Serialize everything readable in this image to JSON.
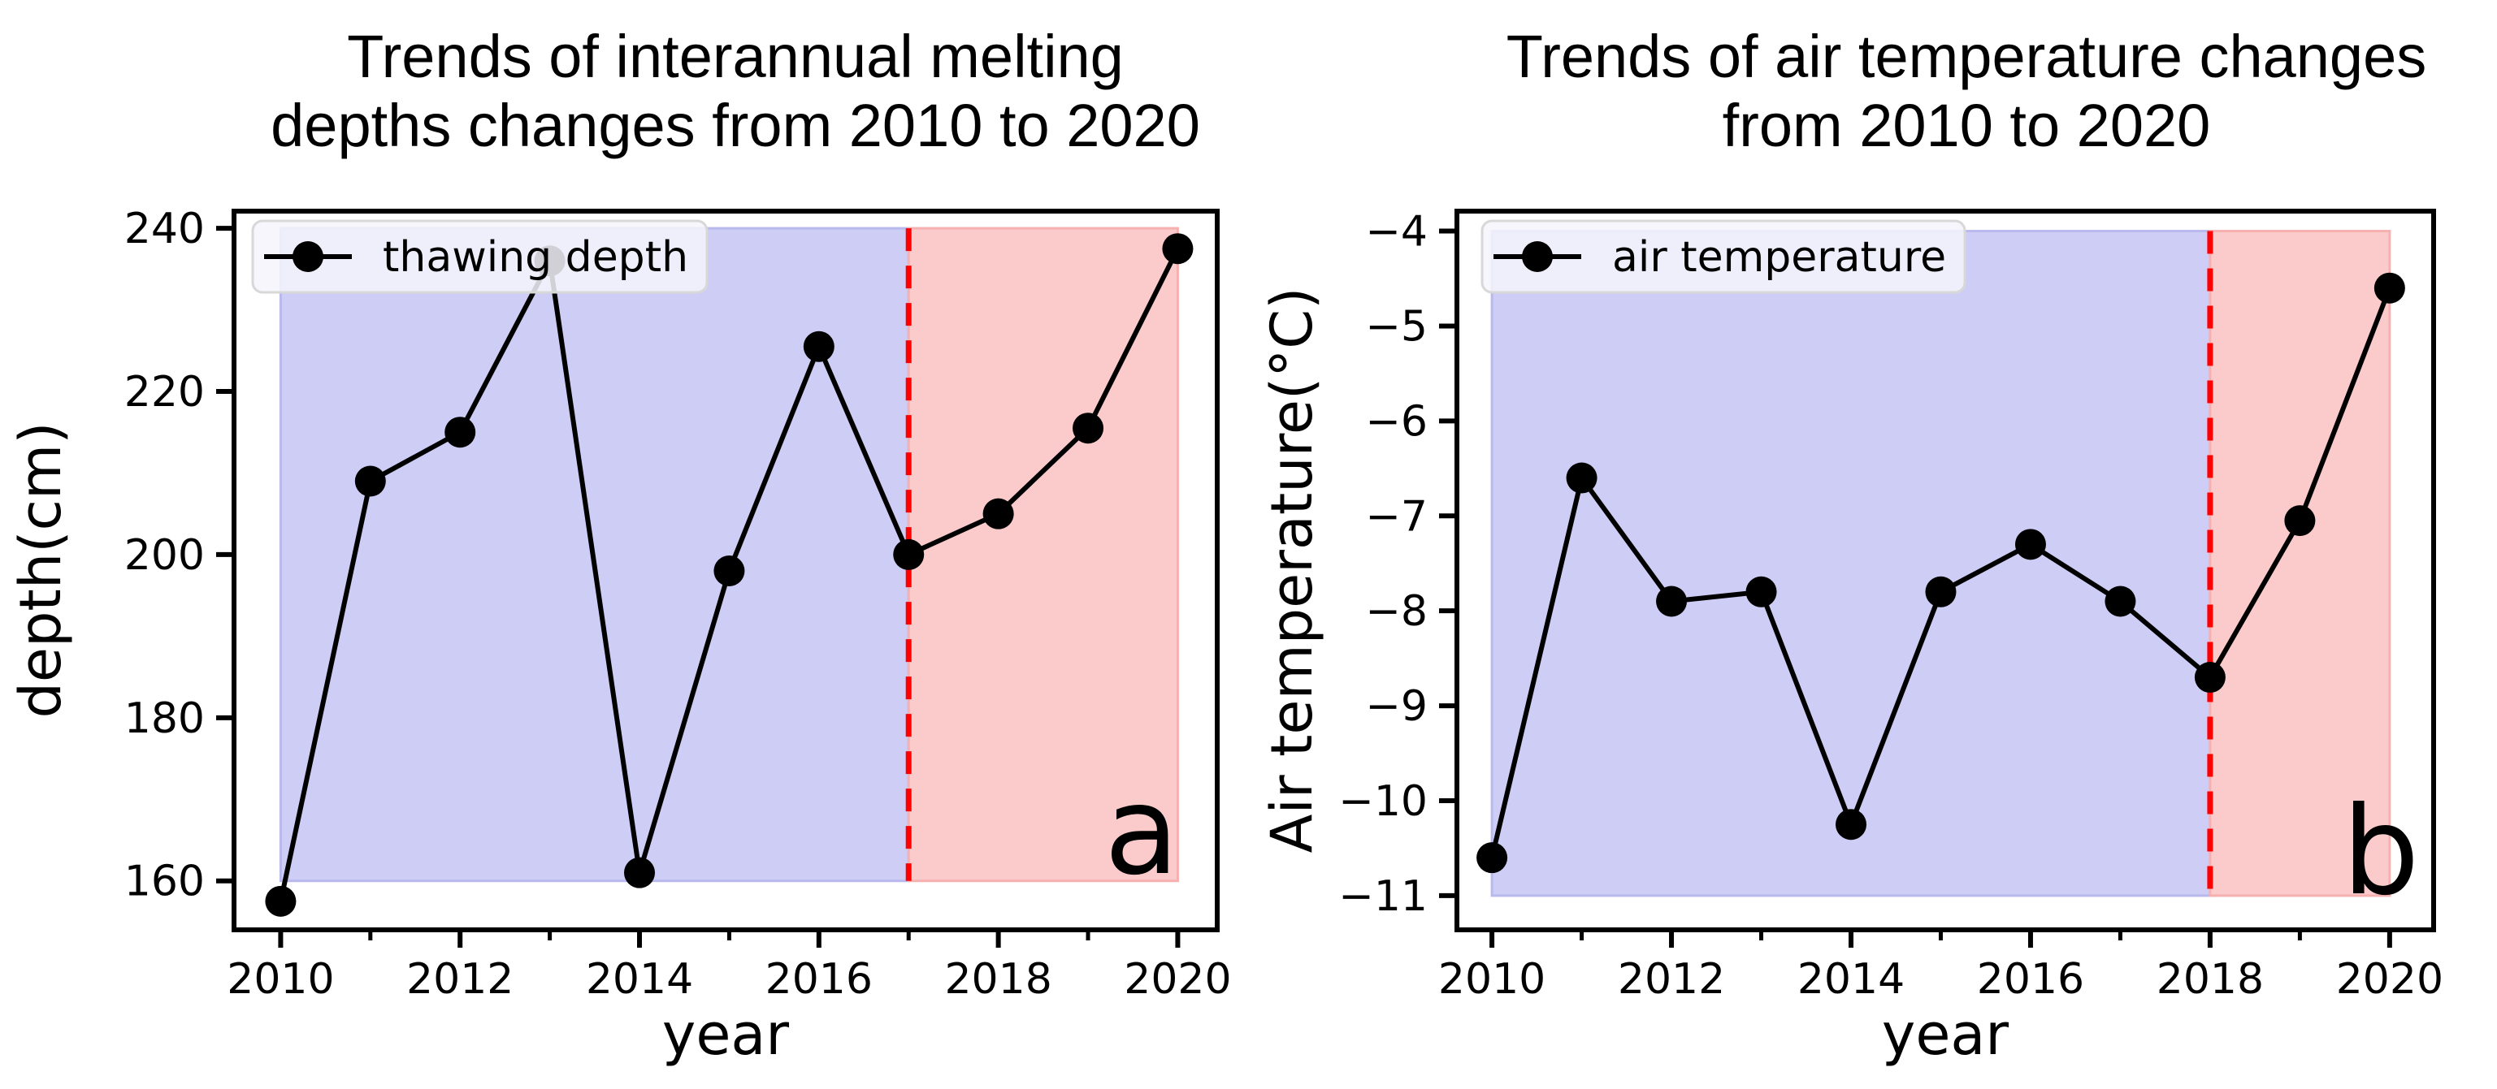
{
  "figure": {
    "background": "#ffffff",
    "line_color": "#000000",
    "spine_color": "#000000",
    "vline_color": "#ff0000",
    "region_blue": "#cdcdf5",
    "region_blue_edge": "#b9b9ee",
    "region_pink": "#fbcbcb",
    "region_pink_edge": "#f7b0b0",
    "legend_bg": "#f4f4fc",
    "legend_border": "#d8d8d8"
  },
  "chart_data": [
    {
      "panel_label": "a",
      "type": "line",
      "title_lines": [
        "Trends of interannual melting",
        "depths changes from 2010 to 2020"
      ],
      "xlabel": "year",
      "ylabel": "depth(cm)",
      "legend": {
        "label": "thawing depth"
      },
      "x": [
        2010,
        2011,
        2012,
        2013,
        2014,
        2015,
        2016,
        2017,
        2018,
        2019,
        2020
      ],
      "values": [
        157.5,
        209,
        215,
        236,
        161,
        198,
        225.5,
        200,
        205,
        215.5,
        237.5
      ],
      "xlim": [
        2009.48,
        2020.44
      ],
      "ylim": [
        154.0,
        242.1
      ],
      "xticks": [
        2010,
        2012,
        2014,
        2016,
        2018,
        2020
      ],
      "xticks_minor": [
        2011,
        2013,
        2015,
        2017,
        2019
      ],
      "yticks": [
        160,
        180,
        200,
        220,
        240
      ],
      "grid": false,
      "legend_position": "upper left",
      "regions": [
        {
          "name": "before-breakpoint",
          "x0": 2010,
          "x1": 2017,
          "y0": 160,
          "y1": 240,
          "color": "#cdcdf5",
          "edge": "#b9b9ee"
        },
        {
          "name": "after-breakpoint",
          "x0": 2017,
          "x1": 2020,
          "y0": 160,
          "y1": 240,
          "color": "#fbcbcb",
          "edge": "#f7b0b0"
        }
      ],
      "vline": {
        "x": 2017,
        "y0": 160,
        "y1": 240,
        "color": "#ff0000",
        "style": "dashed"
      }
    },
    {
      "panel_label": "b",
      "type": "line",
      "title_lines": [
        "Trends of air temperature changes",
        "from 2010 to 2020"
      ],
      "xlabel": "year",
      "ylabel": "Air temperature(°C)",
      "legend": {
        "label": "air temperature"
      },
      "x": [
        2010,
        2011,
        2012,
        2013,
        2014,
        2015,
        2016,
        2017,
        2018,
        2019,
        2020
      ],
      "values": [
        -10.6,
        -6.6,
        -7.9,
        -7.8,
        -10.25,
        -7.8,
        -7.3,
        -7.9,
        -8.7,
        -7.05,
        -4.6
      ],
      "xlim": [
        2009.61,
        2020.49
      ],
      "ylim": [
        -11.36,
        -3.79
      ],
      "xticks": [
        2010,
        2012,
        2014,
        2016,
        2018,
        2020
      ],
      "xticks_minor": [
        2011,
        2013,
        2015,
        2017,
        2019
      ],
      "yticks": [
        -11,
        -10,
        -9,
        -8,
        -7,
        -6,
        -5,
        -4
      ],
      "grid": false,
      "legend_position": "upper left",
      "regions": [
        {
          "name": "before-breakpoint",
          "x0": 2010,
          "x1": 2018,
          "y0": -11,
          "y1": -4,
          "color": "#cdcdf5",
          "edge": "#b9b9ee"
        },
        {
          "name": "after-breakpoint",
          "x0": 2018,
          "x1": 2020,
          "y0": -11,
          "y1": -4,
          "color": "#fbcbcb",
          "edge": "#f7b0b0"
        }
      ],
      "vline": {
        "x": 2018,
        "y0": -11,
        "y1": -4,
        "color": "#ff0000",
        "style": "dashed"
      }
    }
  ]
}
